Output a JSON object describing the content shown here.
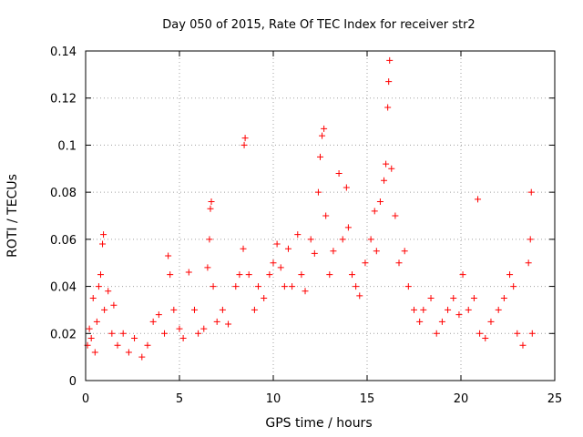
{
  "chart_data": {
    "type": "scatter",
    "title": "Day 050 of 2015, Rate Of TEC Index for receiver str2",
    "xlabel": "GPS time / hours",
    "ylabel": "ROTI / TECUs",
    "xlim": [
      0,
      25
    ],
    "ylim": [
      0,
      0.14
    ],
    "x_ticks": [
      0,
      5,
      10,
      15,
      20,
      25
    ],
    "y_ticks": [
      0,
      0.02,
      0.04,
      0.06,
      0.08,
      0.1,
      0.12,
      0.14
    ],
    "x_tick_labels": [
      "0",
      "5",
      "10",
      "15",
      "20",
      "25"
    ],
    "y_tick_labels": [
      "0",
      "0.02",
      "0.04",
      "0.06",
      "0.08",
      "0.1",
      "0.12",
      "0.14"
    ],
    "grid": true,
    "marker": "plus",
    "color": "#ff0000",
    "series": [
      {
        "name": "ROTI",
        "points": [
          [
            0.1,
            0.015
          ],
          [
            0.2,
            0.022
          ],
          [
            0.3,
            0.018
          ],
          [
            0.4,
            0.035
          ],
          [
            0.5,
            0.012
          ],
          [
            0.6,
            0.025
          ],
          [
            0.7,
            0.04
          ],
          [
            0.8,
            0.045
          ],
          [
            0.9,
            0.058
          ],
          [
            0.95,
            0.062
          ],
          [
            1.0,
            0.03
          ],
          [
            1.2,
            0.038
          ],
          [
            1.4,
            0.02
          ],
          [
            1.5,
            0.032
          ],
          [
            1.7,
            0.015
          ],
          [
            2.0,
            0.02
          ],
          [
            2.3,
            0.012
          ],
          [
            2.6,
            0.018
          ],
          [
            3.0,
            0.01
          ],
          [
            3.3,
            0.015
          ],
          [
            3.6,
            0.025
          ],
          [
            3.9,
            0.028
          ],
          [
            4.2,
            0.02
          ],
          [
            4.4,
            0.053
          ],
          [
            4.5,
            0.045
          ],
          [
            4.7,
            0.03
          ],
          [
            5.0,
            0.022
          ],
          [
            5.2,
            0.018
          ],
          [
            5.5,
            0.046
          ],
          [
            5.8,
            0.03
          ],
          [
            6.0,
            0.02
          ],
          [
            6.3,
            0.022
          ],
          [
            6.5,
            0.048
          ],
          [
            6.6,
            0.06
          ],
          [
            6.65,
            0.073
          ],
          [
            6.7,
            0.076
          ],
          [
            6.8,
            0.04
          ],
          [
            7.0,
            0.025
          ],
          [
            7.3,
            0.03
          ],
          [
            7.6,
            0.024
          ],
          [
            8.0,
            0.04
          ],
          [
            8.2,
            0.045
          ],
          [
            8.4,
            0.056
          ],
          [
            8.45,
            0.1
          ],
          [
            8.5,
            0.103
          ],
          [
            8.7,
            0.045
          ],
          [
            9.0,
            0.03
          ],
          [
            9.2,
            0.04
          ],
          [
            9.5,
            0.035
          ],
          [
            9.8,
            0.045
          ],
          [
            10.0,
            0.05
          ],
          [
            10.2,
            0.058
          ],
          [
            10.4,
            0.048
          ],
          [
            10.6,
            0.04
          ],
          [
            10.8,
            0.056
          ],
          [
            11.0,
            0.04
          ],
          [
            11.3,
            0.062
          ],
          [
            11.5,
            0.045
          ],
          [
            11.7,
            0.038
          ],
          [
            12.0,
            0.06
          ],
          [
            12.2,
            0.054
          ],
          [
            12.4,
            0.08
          ],
          [
            12.5,
            0.095
          ],
          [
            12.6,
            0.104
          ],
          [
            12.7,
            0.107
          ],
          [
            12.8,
            0.07
          ],
          [
            13.0,
            0.045
          ],
          [
            13.2,
            0.055
          ],
          [
            13.5,
            0.088
          ],
          [
            13.7,
            0.06
          ],
          [
            13.9,
            0.082
          ],
          [
            14.0,
            0.065
          ],
          [
            14.2,
            0.045
          ],
          [
            14.4,
            0.04
          ],
          [
            14.6,
            0.036
          ],
          [
            14.9,
            0.05
          ],
          [
            15.2,
            0.06
          ],
          [
            15.4,
            0.072
          ],
          [
            15.5,
            0.055
          ],
          [
            15.7,
            0.076
          ],
          [
            15.9,
            0.085
          ],
          [
            16.0,
            0.092
          ],
          [
            16.1,
            0.116
          ],
          [
            16.15,
            0.127
          ],
          [
            16.2,
            0.136
          ],
          [
            16.3,
            0.09
          ],
          [
            16.5,
            0.07
          ],
          [
            16.7,
            0.05
          ],
          [
            17.0,
            0.055
          ],
          [
            17.2,
            0.04
          ],
          [
            17.5,
            0.03
          ],
          [
            17.8,
            0.025
          ],
          [
            18.0,
            0.03
          ],
          [
            18.4,
            0.035
          ],
          [
            18.7,
            0.02
          ],
          [
            19.0,
            0.025
          ],
          [
            19.3,
            0.03
          ],
          [
            19.6,
            0.035
          ],
          [
            19.9,
            0.028
          ],
          [
            20.1,
            0.045
          ],
          [
            20.4,
            0.03
          ],
          [
            20.7,
            0.035
          ],
          [
            20.9,
            0.077
          ],
          [
            21.0,
            0.02
          ],
          [
            21.3,
            0.018
          ],
          [
            21.6,
            0.025
          ],
          [
            22.0,
            0.03
          ],
          [
            22.3,
            0.035
          ],
          [
            22.6,
            0.045
          ],
          [
            22.8,
            0.04
          ],
          [
            23.0,
            0.02
          ],
          [
            23.3,
            0.015
          ],
          [
            23.6,
            0.05
          ],
          [
            23.7,
            0.06
          ],
          [
            23.75,
            0.08
          ],
          [
            23.8,
            0.02
          ]
        ]
      }
    ]
  }
}
